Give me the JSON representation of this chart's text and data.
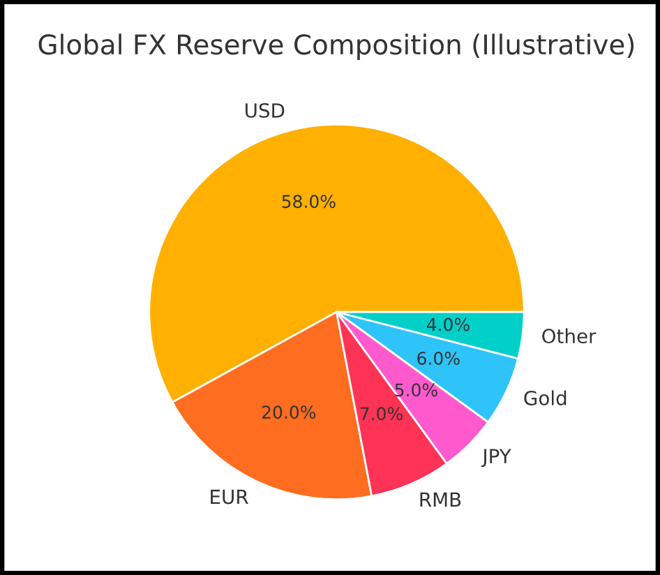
{
  "chart_data": {
    "type": "pie",
    "title": "Global FX Reserve Composition (Illustrative)",
    "categories": [
      "USD",
      "EUR",
      "RMB",
      "JPY",
      "Gold",
      "Other"
    ],
    "values": [
      58.0,
      20.0,
      7.0,
      5.0,
      6.0,
      4.0
    ],
    "value_labels": [
      "58.0%",
      "20.0%",
      "7.0%",
      "5.0%",
      "6.0%",
      "4.0%"
    ],
    "colors": [
      "#ffb000",
      "#fe6d20",
      "#fe3355",
      "#ff5acd",
      "#2ec4f9",
      "#00d0c8"
    ]
  }
}
